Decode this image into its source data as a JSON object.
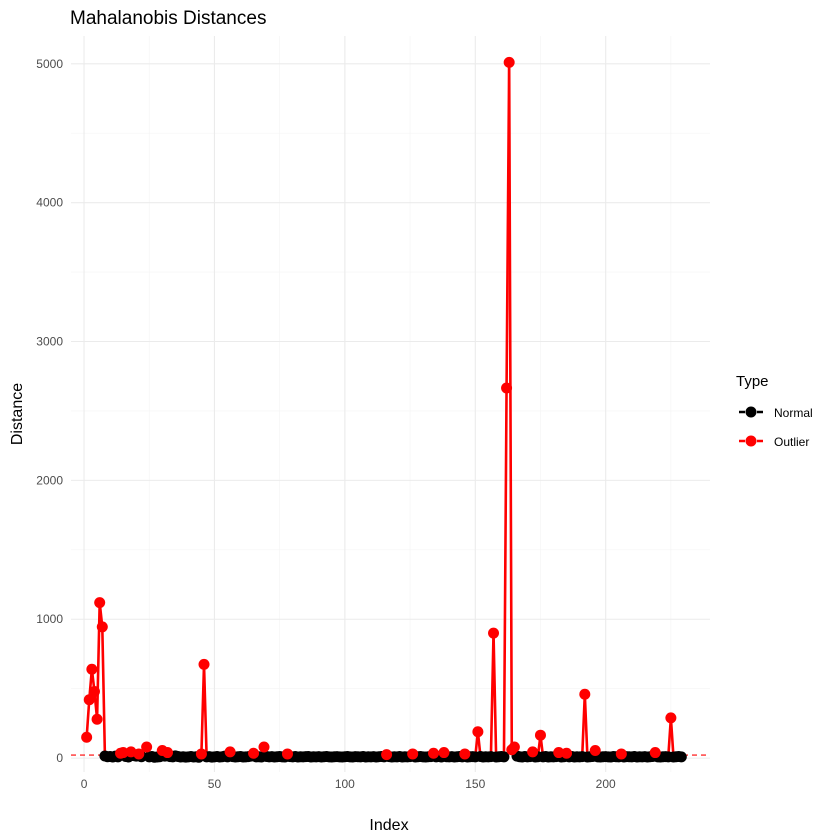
{
  "chart_data": {
    "type": "scatter",
    "title": "Mahalanobis Distances",
    "xlabel": "Index",
    "ylabel": "Distance",
    "xlim": [
      -5,
      240
    ],
    "ylim": [
      -100,
      5200
    ],
    "x_ticks": [
      0,
      50,
      100,
      150,
      200
    ],
    "y_ticks": [
      0,
      1000,
      2000,
      3000,
      4000,
      5000
    ],
    "grid": true,
    "threshold": 22,
    "legend": {
      "title": "Type",
      "position": "right",
      "entries": [
        {
          "label": "Normal",
          "color": "#000000"
        },
        {
          "label": "Outlier",
          "color": "#ff0000"
        }
      ]
    },
    "series": [
      {
        "name": "Normal",
        "color": "#000000",
        "points": [
          [
            8,
            15
          ],
          [
            9,
            10
          ],
          [
            10,
            12
          ],
          [
            11,
            8
          ],
          [
            12,
            14
          ],
          [
            13,
            9
          ],
          [
            16,
            12
          ],
          [
            17,
            8
          ],
          [
            19,
            18
          ],
          [
            20,
            14
          ],
          [
            22,
            10
          ],
          [
            25,
            9
          ],
          [
            26,
            12
          ],
          [
            27,
            6
          ],
          [
            28,
            8
          ],
          [
            29,
            10
          ],
          [
            31,
            14
          ],
          [
            33,
            11
          ],
          [
            34,
            9
          ],
          [
            35,
            16
          ],
          [
            36,
            12
          ],
          [
            37,
            8
          ],
          [
            38,
            10
          ],
          [
            39,
            7
          ],
          [
            40,
            9
          ],
          [
            41,
            12
          ],
          [
            42,
            8
          ],
          [
            43,
            10
          ],
          [
            44,
            6
          ],
          [
            47,
            9
          ],
          [
            48,
            11
          ],
          [
            49,
            7
          ],
          [
            50,
            9
          ],
          [
            51,
            12
          ],
          [
            52,
            8
          ],
          [
            53,
            10
          ],
          [
            54,
            14
          ],
          [
            55,
            9
          ],
          [
            57,
            11
          ],
          [
            58,
            8
          ],
          [
            59,
            10
          ],
          [
            60,
            12
          ],
          [
            61,
            8
          ],
          [
            62,
            9
          ],
          [
            63,
            11
          ],
          [
            64,
            14
          ],
          [
            66,
            9
          ],
          [
            67,
            10
          ],
          [
            68,
            8
          ],
          [
            70,
            12
          ],
          [
            71,
            9
          ],
          [
            72,
            11
          ],
          [
            73,
            8
          ],
          [
            74,
            10
          ],
          [
            75,
            12
          ],
          [
            76,
            9
          ],
          [
            77,
            8
          ],
          [
            79,
            11
          ],
          [
            80,
            9
          ],
          [
            81,
            12
          ],
          [
            82,
            8
          ],
          [
            83,
            10
          ],
          [
            84,
            9
          ],
          [
            85,
            11
          ],
          [
            86,
            12
          ],
          [
            87,
            8
          ],
          [
            88,
            10
          ],
          [
            89,
            9
          ],
          [
            90,
            11
          ],
          [
            91,
            8
          ],
          [
            92,
            10
          ],
          [
            93,
            12
          ],
          [
            94,
            9
          ],
          [
            95,
            8
          ],
          [
            96,
            10
          ],
          [
            97,
            11
          ],
          [
            98,
            9
          ],
          [
            99,
            8
          ],
          [
            100,
            10
          ],
          [
            101,
            12
          ],
          [
            102,
            9
          ],
          [
            103,
            8
          ],
          [
            104,
            11
          ],
          [
            105,
            10
          ],
          [
            106,
            9
          ],
          [
            107,
            12
          ],
          [
            108,
            8
          ],
          [
            109,
            10
          ],
          [
            110,
            9
          ],
          [
            111,
            11
          ],
          [
            112,
            8
          ],
          [
            113,
            10
          ],
          [
            114,
            12
          ],
          [
            115,
            9
          ],
          [
            117,
            11
          ],
          [
            118,
            8
          ],
          [
            119,
            10
          ],
          [
            120,
            9
          ],
          [
            121,
            12
          ],
          [
            122,
            8
          ],
          [
            123,
            10
          ],
          [
            124,
            9
          ],
          [
            125,
            11
          ],
          [
            127,
            8
          ],
          [
            128,
            10
          ],
          [
            129,
            12
          ],
          [
            130,
            9
          ],
          [
            131,
            8
          ],
          [
            132,
            10
          ],
          [
            133,
            11
          ],
          [
            135,
            9
          ],
          [
            136,
            12
          ],
          [
            137,
            8
          ],
          [
            139,
            10
          ],
          [
            140,
            9
          ],
          [
            141,
            11
          ],
          [
            142,
            8
          ],
          [
            143,
            10
          ],
          [
            144,
            12
          ],
          [
            145,
            9
          ],
          [
            147,
            8
          ],
          [
            148,
            10
          ],
          [
            149,
            11
          ],
          [
            150,
            9
          ],
          [
            152,
            12
          ],
          [
            153,
            8
          ],
          [
            154,
            10
          ],
          [
            155,
            9
          ],
          [
            156,
            11
          ],
          [
            158,
            8
          ],
          [
            159,
            10
          ],
          [
            160,
            12
          ],
          [
            161,
            9
          ],
          [
            166,
            14
          ],
          [
            167,
            10
          ],
          [
            168,
            8
          ],
          [
            169,
            12
          ],
          [
            170,
            9
          ],
          [
            171,
            11
          ],
          [
            173,
            8
          ],
          [
            174,
            10
          ],
          [
            176,
            9
          ],
          [
            177,
            12
          ],
          [
            178,
            8
          ],
          [
            179,
            10
          ],
          [
            180,
            9
          ],
          [
            181,
            11
          ],
          [
            183,
            8
          ],
          [
            184,
            10
          ],
          [
            186,
            9
          ],
          [
            187,
            12
          ],
          [
            188,
            8
          ],
          [
            189,
            10
          ],
          [
            190,
            9
          ],
          [
            191,
            11
          ],
          [
            193,
            8
          ],
          [
            194,
            10
          ],
          [
            195,
            12
          ],
          [
            197,
            9
          ],
          [
            198,
            8
          ],
          [
            199,
            10
          ],
          [
            200,
            11
          ],
          [
            201,
            9
          ],
          [
            202,
            8
          ],
          [
            203,
            12
          ],
          [
            204,
            10
          ],
          [
            205,
            9
          ],
          [
            207,
            8
          ],
          [
            208,
            11
          ],
          [
            209,
            10
          ],
          [
            210,
            9
          ],
          [
            211,
            12
          ],
          [
            212,
            8
          ],
          [
            213,
            10
          ],
          [
            214,
            9
          ],
          [
            215,
            11
          ],
          [
            216,
            8
          ],
          [
            217,
            10
          ],
          [
            218,
            12
          ],
          [
            220,
            9
          ],
          [
            221,
            8
          ],
          [
            222,
            10
          ],
          [
            223,
            11
          ],
          [
            224,
            9
          ],
          [
            226,
            8
          ],
          [
            227,
            10
          ],
          [
            228,
            12
          ],
          [
            229,
            9
          ]
        ]
      },
      {
        "name": "Outlier",
        "color": "#ff0000",
        "points": [
          [
            1,
            150
          ],
          [
            2,
            420
          ],
          [
            3,
            640
          ],
          [
            4,
            480
          ],
          [
            5,
            280
          ],
          [
            6,
            1120
          ],
          [
            7,
            945
          ],
          [
            14,
            35
          ],
          [
            15,
            40
          ],
          [
            18,
            45
          ],
          [
            21,
            30
          ],
          [
            24,
            80
          ],
          [
            30,
            55
          ],
          [
            32,
            40
          ],
          [
            45,
            30
          ],
          [
            46,
            675
          ],
          [
            56,
            45
          ],
          [
            65,
            35
          ],
          [
            69,
            80
          ],
          [
            78,
            30
          ],
          [
            116,
            25
          ],
          [
            126,
            30
          ],
          [
            134,
            35
          ],
          [
            138,
            40
          ],
          [
            146,
            30
          ],
          [
            151,
            190
          ],
          [
            157,
            900
          ],
          [
            162,
            2665
          ],
          [
            163,
            5010
          ],
          [
            164,
            60
          ],
          [
            165,
            80
          ],
          [
            172,
            45
          ],
          [
            175,
            165
          ],
          [
            182,
            40
          ],
          [
            185,
            35
          ],
          [
            192,
            460
          ],
          [
            196,
            55
          ],
          [
            206,
            30
          ],
          [
            219,
            40
          ],
          [
            225,
            290
          ]
        ]
      }
    ]
  }
}
